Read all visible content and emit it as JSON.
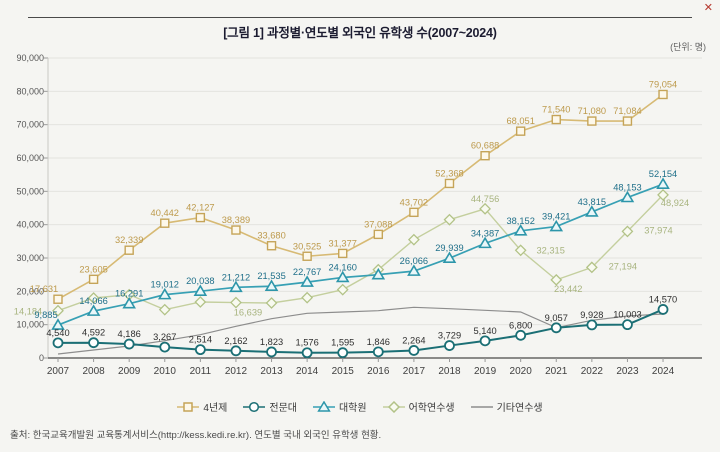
{
  "header": {
    "title": "[그림 1] 과정별·연도별 외국인 유학생 수(2007~2024)",
    "unit": "(단위: 명)",
    "corner_icon": "✕"
  },
  "footer": {
    "source": "출처: 한국교육개발원 교육통계서비스(http://kess.kedi.re.kr). 연도별 국내 외국인 유학생 현황."
  },
  "chart_data": {
    "type": "line",
    "title": "과정별·연도별 외국인 유학생 수(2007~2024)",
    "unit": "명",
    "xlabel": "",
    "ylabel": "",
    "grid": true,
    "legend_position": "bottom",
    "categories": [
      "2007",
      "2008",
      "2009",
      "2010",
      "2011",
      "2012",
      "2013",
      "2014",
      "2015",
      "2016",
      "2017",
      "2018",
      "2019",
      "2020",
      "2021",
      "2022",
      "2023",
      "2024"
    ],
    "y_axis": {
      "min": 0,
      "max": 90000,
      "tick_step": 10000,
      "tick_labels": [
        "0",
        "10,000",
        "20,000",
        "30,000",
        "40,000",
        "50,000",
        "60,000",
        "70,000",
        "80,000",
        "90,000"
      ]
    },
    "series": [
      {
        "name": "4년제",
        "marker": "square",
        "line_color": "#d7ba74",
        "marker_color": "#c5a458",
        "marker_fill": "#fdf8ea",
        "label_color": "#bd9a4c",
        "values": [
          17631,
          23605,
          32339,
          40442,
          42127,
          38389,
          33680,
          30525,
          31377,
          37088,
          43702,
          52368,
          60688,
          68051,
          71540,
          71080,
          71084,
          79054
        ],
        "labels": [
          "17,631",
          "23,605",
          "32,339",
          "40,442",
          "42,127",
          "38,389",
          "33,680",
          "30,525",
          "31,377",
          "37,088",
          "43,702",
          "52,368",
          "60,688",
          "68,051",
          "71,540",
          "71,080",
          "71,084",
          "79,054"
        ]
      },
      {
        "name": "전문대",
        "marker": "circle",
        "line_color": "#1b6f75",
        "marker_color": "#1b6f75",
        "marker_fill": "#ffffff",
        "label_color": "#2e2e2e",
        "values": [
          4540,
          4592,
          4186,
          3267,
          2514,
          2162,
          1823,
          1576,
          1595,
          1846,
          2264,
          3729,
          5140,
          6800,
          9057,
          9928,
          10003,
          14570
        ],
        "labels": [
          "4,540",
          "4,592",
          "4,186",
          "3,267",
          "2,514",
          "2,162",
          "1,823",
          "1,576",
          "1,595",
          "1,846",
          "2,264",
          "3,729",
          "5,140",
          "6,800",
          "9,057",
          "9,928",
          "10,003",
          "14,570"
        ]
      },
      {
        "name": "대학원",
        "marker": "triangle",
        "line_color": "#37a0b4",
        "marker_color": "#2d96aa",
        "marker_fill": "#eaf7f9",
        "label_color": "#20708a",
        "values": [
          9885,
          14066,
          16291,
          19012,
          20038,
          21212,
          21535,
          22767,
          24160,
          25000,
          26066,
          29939,
          34387,
          38152,
          39421,
          43815,
          48153,
          52154
        ],
        "labels": [
          "9,885",
          "14,066",
          "16,291",
          "19,012",
          "20,038",
          "21,212",
          "21,535",
          "22,767",
          "24,160",
          null,
          "26,066",
          "29,939",
          "34,387",
          "38,152",
          "39,421",
          "43,815",
          "48,153",
          "52,154"
        ]
      },
      {
        "name": "어학연수생",
        "marker": "diamond",
        "line_color": "#c4cf9e",
        "marker_color": "#b2c287",
        "marker_fill": "#f8faf0",
        "label_color": "#a8b47f",
        "values": [
          14184,
          18000,
          19000,
          14500,
          16800,
          16639,
          16500,
          18100,
          20500,
          26500,
          35500,
          41500,
          44756,
          32315,
          23442,
          27194,
          37974,
          48924
        ],
        "labels": [
          "14,184",
          null,
          null,
          null,
          null,
          "16,639",
          null,
          null,
          null,
          null,
          null,
          null,
          "44,756",
          "32,315",
          "23,442",
          "27,194",
          "37,974",
          "48,924"
        ]
      },
      {
        "name": "기타연수생",
        "marker": "none",
        "line_color": "#8d8d8d",
        "marker_color": "#8d8d8d",
        "marker_fill": "#8d8d8d",
        "label_color": "#8d8d8d",
        "values": [
          1200,
          2400,
          3600,
          5200,
          7000,
          9500,
          11800,
          13400,
          13800,
          14200,
          15200,
          14800,
          14300,
          13800,
          9100,
          11300,
          12600,
          13200
        ],
        "labels": [
          null,
          null,
          null,
          null,
          null,
          null,
          null,
          null,
          null,
          null,
          null,
          null,
          null,
          null,
          null,
          null,
          null,
          null
        ]
      }
    ]
  }
}
